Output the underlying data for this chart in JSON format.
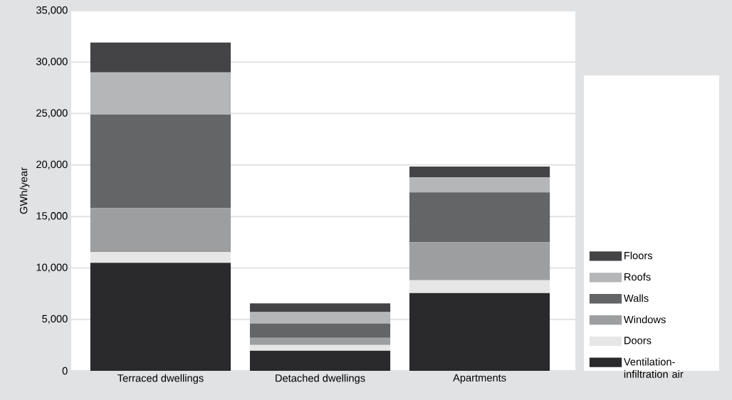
{
  "chart_data": {
    "type": "bar",
    "stacked": true,
    "ylabel": "GWh/year",
    "categories": [
      "Terraced dwellings",
      "Detached dwellings",
      "Apartments"
    ],
    "series": [
      {
        "name": "Ventilation-infiltration air",
        "color": "#2a2a2c",
        "values": [
          10500,
          1950,
          7550
        ]
      },
      {
        "name": "Doors",
        "color": "#e6e6e6",
        "values": [
          1050,
          550,
          1250
        ]
      },
      {
        "name": "Windows",
        "color": "#9d9ea0",
        "values": [
          4250,
          700,
          3700
        ]
      },
      {
        "name": "Walls",
        "color": "#646567",
        "values": [
          9100,
          1400,
          4850
        ]
      },
      {
        "name": "Roofs",
        "color": "#b5b6b8",
        "values": [
          4100,
          1100,
          1450
        ]
      },
      {
        "name": "Floors",
        "color": "#444446",
        "values": [
          2900,
          850,
          1050
        ]
      }
    ],
    "ylim": [
      0,
      35000
    ],
    "yticks": [
      {
        "value": 0,
        "label": "0"
      },
      {
        "value": 5000,
        "label": "5,000"
      },
      {
        "value": 10000,
        "label": "10,000"
      },
      {
        "value": 15000,
        "label": "15,000"
      },
      {
        "value": 20000,
        "label": "20,000"
      },
      {
        "value": 25000,
        "label": "25,000"
      },
      {
        "value": 30000,
        "label": "30,000"
      },
      {
        "value": 35000,
        "label": "35,000"
      }
    ],
    "grid": "y",
    "legend": "right"
  }
}
